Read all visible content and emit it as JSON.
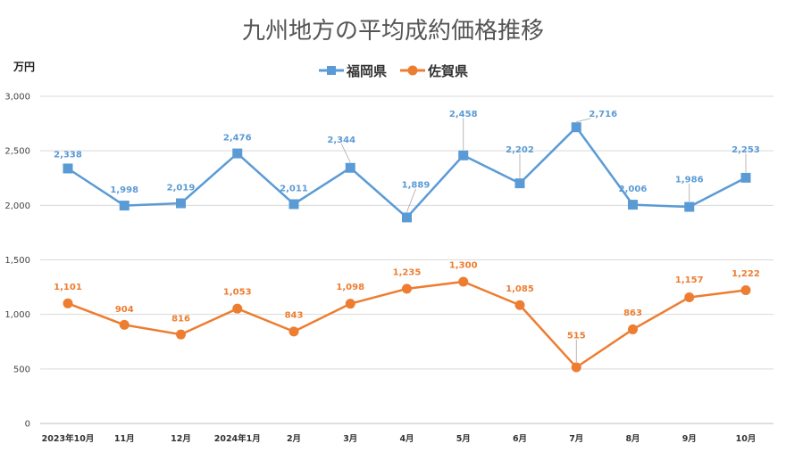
{
  "chart_data": {
    "type": "line",
    "title": "九州地方の平均成約価格推移",
    "ylabel": "万円",
    "ylim": [
      0,
      3000
    ],
    "yticks": [
      "0",
      "500",
      "1,000",
      "1,500",
      "2,000",
      "2,500",
      "3,000"
    ],
    "categories": [
      "2023年10月",
      "11月",
      "12月",
      "2024年1月",
      "2月",
      "3月",
      "4月",
      "5月",
      "6月",
      "7月",
      "8月",
      "9月",
      "10月"
    ],
    "grid": true,
    "legend_position": "top",
    "series": [
      {
        "name": "福岡県",
        "color": "#5b9bd5",
        "marker": "square",
        "values": [
          2338,
          1998,
          2019,
          2476,
          2011,
          2344,
          1889,
          2458,
          2202,
          2716,
          2006,
          1986,
          2253
        ],
        "labels": [
          "2,338",
          "1,998",
          "2,019",
          "2,476",
          "2,011",
          "2,344",
          "1,889",
          "2,458",
          "2,202",
          "2,716",
          "2,006",
          "1,986",
          "2,253"
        ]
      },
      {
        "name": "佐賀県",
        "color": "#ed7d31",
        "marker": "circle",
        "values": [
          1101,
          904,
          816,
          1053,
          843,
          1098,
          1235,
          1300,
          1085,
          515,
          863,
          1157,
          1222
        ],
        "labels": [
          "1,101",
          "904",
          "816",
          "1,053",
          "843",
          "1,098",
          "1,235",
          "1,300",
          "1,085",
          "515",
          "863",
          "1,157",
          "1,222"
        ]
      }
    ]
  }
}
